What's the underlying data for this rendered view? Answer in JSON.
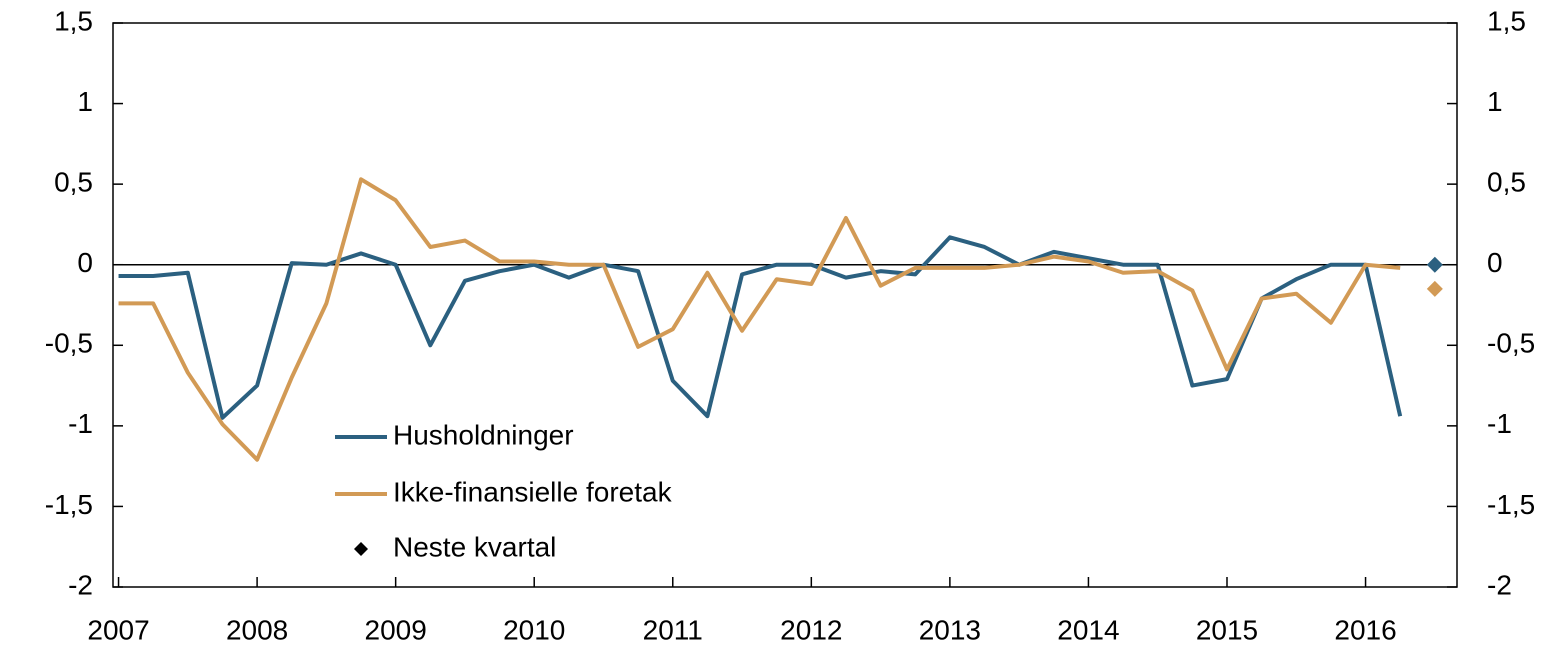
{
  "chart_data": {
    "type": "line",
    "x": [
      2007,
      2007.25,
      2007.5,
      2007.75,
      2008,
      2008.25,
      2008.5,
      2008.75,
      2009,
      2009.25,
      2009.5,
      2009.75,
      2010,
      2010.25,
      2010.5,
      2010.75,
      2011,
      2011.25,
      2011.5,
      2011.75,
      2012,
      2012.25,
      2012.5,
      2012.75,
      2013,
      2013.25,
      2013.5,
      2013.75,
      2014,
      2014.25,
      2014.5,
      2014.75,
      2015,
      2015.25,
      2015.5,
      2015.75,
      2016,
      2016.25
    ],
    "series": [
      {
        "name": "Husholdninger",
        "color": "#2b6080",
        "values": [
          -0.07,
          -0.07,
          -0.05,
          -0.95,
          -0.75,
          0.01,
          0,
          0.07,
          0,
          -0.5,
          -0.1,
          -0.04,
          0,
          -0.08,
          0,
          -0.04,
          -0.72,
          -0.94,
          -0.06,
          0,
          0,
          -0.08,
          -0.04,
          -0.06,
          0.17,
          0.11,
          0,
          0.08,
          0.04,
          0,
          0,
          -0.75,
          -0.71,
          -0.21,
          -0.09,
          0,
          0,
          -0.94
        ]
      },
      {
        "name": "Ikke-finansielle foretak",
        "color": "#d29a55",
        "values": [
          -0.24,
          -0.24,
          -0.67,
          -0.99,
          -1.21,
          -0.7,
          -0.24,
          0.53,
          0.4,
          0.11,
          0.15,
          0.02,
          0.02,
          0,
          0,
          -0.51,
          -0.4,
          -0.05,
          -0.41,
          -0.09,
          -0.12,
          0.29,
          -0.13,
          -0.02,
          -0.02,
          -0.02,
          0,
          0.05,
          0.02,
          -0.05,
          -0.04,
          -0.16,
          -0.65,
          -0.21,
          -0.18,
          -0.36,
          0,
          -0.02
        ]
      }
    ],
    "markers": {
      "name": "Neste kvartal",
      "color": "#000000",
      "x": [
        2016.5,
        2016.5
      ],
      "values": [
        0,
        -0.15
      ],
      "colors": [
        "#2b6080",
        "#d29a55"
      ]
    },
    "xlim": [
      2006.96,
      2016.66
    ],
    "xticks": [
      2007,
      2008,
      2009,
      2010,
      2011,
      2012,
      2013,
      2014,
      2015,
      2016
    ],
    "ylim": [
      -2,
      1.5
    ],
    "yticks": [
      -2,
      {
        "value": -1.5,
        "label": "-1,5"
      },
      -1,
      {
        "value": -0.5,
        "label": "-0,5"
      },
      0,
      {
        "value": 0.5,
        "label": "0,5"
      },
      1,
      {
        "value": 1.5,
        "label": "1,5"
      }
    ],
    "y2lim": [
      -2,
      1.5
    ],
    "y2ticks": [
      -2,
      {
        "value": -1.5,
        "label": "-1,5"
      },
      -1,
      {
        "value": -0.5,
        "label": "-0,5"
      },
      0,
      {
        "value": 0.5,
        "label": "0,5"
      },
      1,
      {
        "value": 1.5,
        "label": "1,5"
      }
    ],
    "legend": "lower-left"
  }
}
